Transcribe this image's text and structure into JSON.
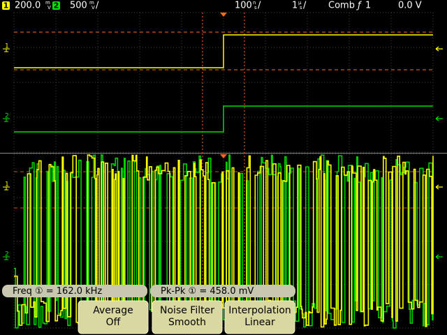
{
  "status_bar": {
    "ch1": {
      "badge": "1",
      "value": "200.0",
      "unit_top": "m",
      "unit_bottom": "V"
    },
    "ch2": {
      "badge": "2",
      "value": "500",
      "unit_top": "m",
      "unit_bottom": "V",
      "suffix": "/"
    },
    "timebase": {
      "value": "100",
      "unit_top": "n",
      "unit_bottom": "s",
      "suffix": "/"
    },
    "delay": {
      "value": "1",
      "unit_top": "µ",
      "unit_bottom": "s",
      "suffix": "/"
    },
    "trigger": {
      "mode": "Comb",
      "icon": "ƒ",
      "source": "1"
    },
    "level": "0.0 V"
  },
  "channel_markers": [
    "1",
    "2",
    "1",
    "2"
  ],
  "measurements": [
    "Freq ① = 162.0 kHz",
    "Pk-Pk ① = 458.0 mV"
  ],
  "softkeys": [
    {
      "title": "Average",
      "value": "Off"
    },
    {
      "title": "Noise Filter",
      "value": "Smooth"
    },
    {
      "title": "Interpolation",
      "value": "Linear"
    }
  ]
}
